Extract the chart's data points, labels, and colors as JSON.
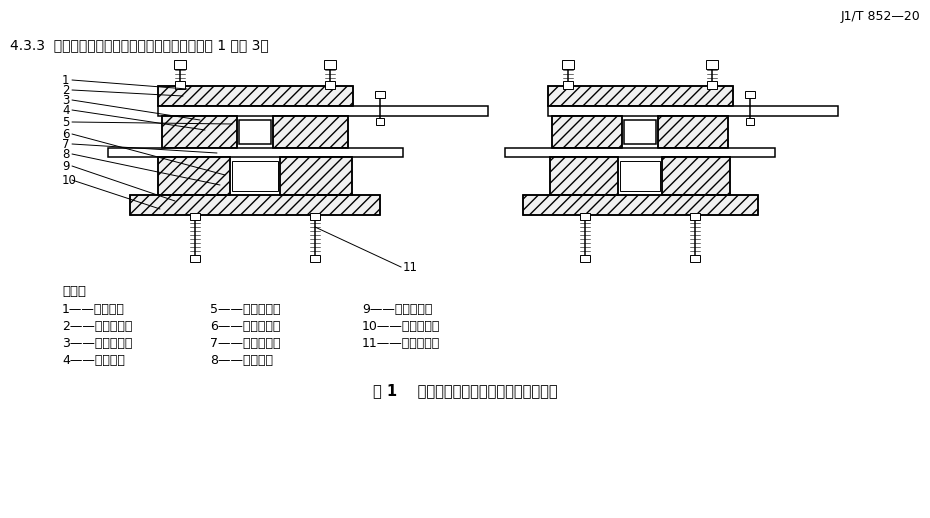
{
  "bg_color": "#ffffff",
  "header_text": "J1/T 852—20",
  "title_text": "4.3.3  摩擦摇式减隔震支座各支座结构示意图见图 1 ～图 3。",
  "legend_title": "说明：",
  "legend_col1": [
    "1——上座板；",
    "2——平面滑板；",
    "3——球冠衬板；",
    "4——防尘圈；"
  ],
  "legend_col2": [
    "5——球面滑板；",
    "6——减震球摇；",
    "7——隔震挡块；",
    "8——剪力销；"
  ],
  "legend_col3": [
    "9——减震滑板；",
    "10——减震底座；",
    "11——螺栓套筒。",
    ""
  ],
  "caption": "图 1    固定摩擦摇式减隔震支座结构示意图",
  "line_color": "#000000",
  "text_color": "#000000"
}
